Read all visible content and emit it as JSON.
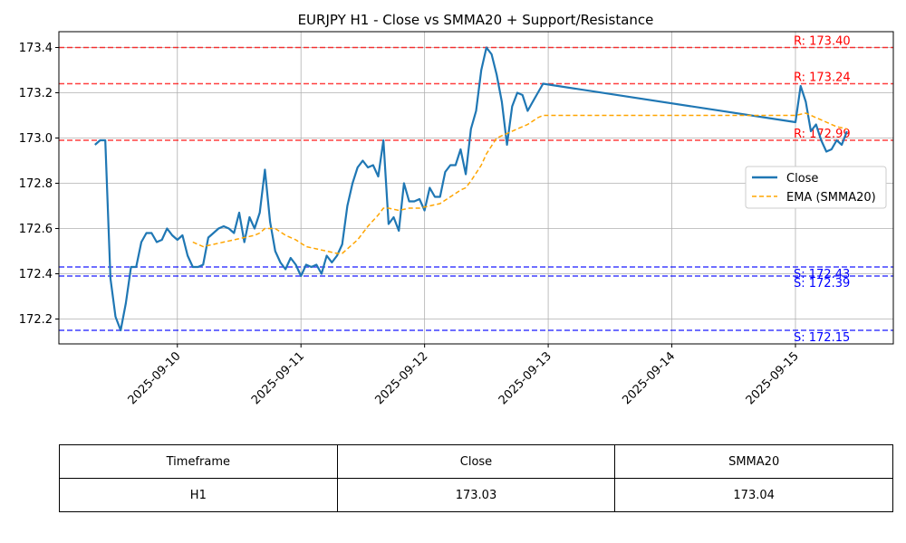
{
  "chart_data": {
    "type": "line",
    "title": "EURJPY H1 - Close vs SMMA20 + Support/Resistance",
    "xlabel": "",
    "ylabel": "",
    "x_range": [
      "2025-09-09T01:00",
      "2025-09-15T19:00"
    ],
    "ylim": [
      172.09,
      173.47
    ],
    "y_ticks": [
      172.2,
      172.4,
      172.6,
      172.8,
      173.0,
      173.2,
      173.4
    ],
    "y_tick_labels": [
      "172.2",
      "172.4",
      "172.6",
      "172.8",
      "173.0",
      "173.2",
      "173.4"
    ],
    "x_ticks": [
      "2025-09-10",
      "2025-09-11",
      "2025-09-12",
      "2025-09-13",
      "2025-09-14",
      "2025-09-15"
    ],
    "grid": true,
    "legend_position": "right",
    "series": [
      {
        "name": "Close",
        "color": "#1f77b4",
        "style": "solid",
        "points": [
          [
            "2025-09-09T08:00",
            172.97
          ],
          [
            "2025-09-09T09:00",
            172.99
          ],
          [
            "2025-09-09T10:00",
            172.99
          ],
          [
            "2025-09-09T11:00",
            172.38
          ],
          [
            "2025-09-09T12:00",
            172.21
          ],
          [
            "2025-09-09T13:00",
            172.15
          ],
          [
            "2025-09-09T14:00",
            172.27
          ],
          [
            "2025-09-09T15:00",
            172.43
          ],
          [
            "2025-09-09T16:00",
            172.43
          ],
          [
            "2025-09-09T17:00",
            172.54
          ],
          [
            "2025-09-09T18:00",
            172.58
          ],
          [
            "2025-09-09T19:00",
            172.58
          ],
          [
            "2025-09-09T20:00",
            172.54
          ],
          [
            "2025-09-09T21:00",
            172.55
          ],
          [
            "2025-09-09T22:00",
            172.6
          ],
          [
            "2025-09-09T23:00",
            172.57
          ],
          [
            "2025-09-10T00:00",
            172.55
          ],
          [
            "2025-09-10T01:00",
            172.57
          ],
          [
            "2025-09-10T02:00",
            172.48
          ],
          [
            "2025-09-10T03:00",
            172.43
          ],
          [
            "2025-09-10T04:00",
            172.43
          ],
          [
            "2025-09-10T05:00",
            172.44
          ],
          [
            "2025-09-10T06:00",
            172.56
          ],
          [
            "2025-09-10T07:00",
            172.58
          ],
          [
            "2025-09-10T08:00",
            172.6
          ],
          [
            "2025-09-10T09:00",
            172.61
          ],
          [
            "2025-09-10T10:00",
            172.6
          ],
          [
            "2025-09-10T11:00",
            172.58
          ],
          [
            "2025-09-10T12:00",
            172.67
          ],
          [
            "2025-09-10T13:00",
            172.54
          ],
          [
            "2025-09-10T14:00",
            172.65
          ],
          [
            "2025-09-10T15:00",
            172.6
          ],
          [
            "2025-09-10T16:00",
            172.67
          ],
          [
            "2025-09-10T17:00",
            172.86
          ],
          [
            "2025-09-10T18:00",
            172.63
          ],
          [
            "2025-09-10T19:00",
            172.5
          ],
          [
            "2025-09-10T20:00",
            172.45
          ],
          [
            "2025-09-10T21:00",
            172.42
          ],
          [
            "2025-09-10T22:00",
            172.47
          ],
          [
            "2025-09-10T23:00",
            172.44
          ],
          [
            "2025-09-11T00:00",
            172.39
          ],
          [
            "2025-09-11T01:00",
            172.44
          ],
          [
            "2025-09-11T02:00",
            172.43
          ],
          [
            "2025-09-11T03:00",
            172.44
          ],
          [
            "2025-09-11T04:00",
            172.4
          ],
          [
            "2025-09-11T05:00",
            172.48
          ],
          [
            "2025-09-11T06:00",
            172.45
          ],
          [
            "2025-09-11T07:00",
            172.48
          ],
          [
            "2025-09-11T08:00",
            172.53
          ],
          [
            "2025-09-11T09:00",
            172.7
          ],
          [
            "2025-09-11T10:00",
            172.8
          ],
          [
            "2025-09-11T11:00",
            172.87
          ],
          [
            "2025-09-11T12:00",
            172.9
          ],
          [
            "2025-09-11T13:00",
            172.87
          ],
          [
            "2025-09-11T14:00",
            172.88
          ],
          [
            "2025-09-11T15:00",
            172.83
          ],
          [
            "2025-09-11T16:00",
            172.99
          ],
          [
            "2025-09-11T17:00",
            172.62
          ],
          [
            "2025-09-11T18:00",
            172.65
          ],
          [
            "2025-09-11T19:00",
            172.59
          ],
          [
            "2025-09-11T20:00",
            172.8
          ],
          [
            "2025-09-11T21:00",
            172.72
          ],
          [
            "2025-09-11T22:00",
            172.72
          ],
          [
            "2025-09-11T23:00",
            172.73
          ],
          [
            "2025-09-12T00:00",
            172.68
          ],
          [
            "2025-09-12T01:00",
            172.78
          ],
          [
            "2025-09-12T02:00",
            172.74
          ],
          [
            "2025-09-12T03:00",
            172.74
          ],
          [
            "2025-09-12T04:00",
            172.85
          ],
          [
            "2025-09-12T05:00",
            172.88
          ],
          [
            "2025-09-12T06:00",
            172.88
          ],
          [
            "2025-09-12T07:00",
            172.95
          ],
          [
            "2025-09-12T08:00",
            172.84
          ],
          [
            "2025-09-12T09:00",
            173.04
          ],
          [
            "2025-09-12T10:00",
            173.12
          ],
          [
            "2025-09-12T11:00",
            173.3
          ],
          [
            "2025-09-12T12:00",
            173.4
          ],
          [
            "2025-09-12T13:00",
            173.37
          ],
          [
            "2025-09-12T14:00",
            173.28
          ],
          [
            "2025-09-12T15:00",
            173.16
          ],
          [
            "2025-09-12T16:00",
            172.97
          ],
          [
            "2025-09-12T17:00",
            173.14
          ],
          [
            "2025-09-12T18:00",
            173.2
          ],
          [
            "2025-09-12T19:00",
            173.19
          ],
          [
            "2025-09-12T20:00",
            173.12
          ],
          [
            "2025-09-12T21:00",
            173.16
          ],
          [
            "2025-09-12T22:00",
            173.2
          ],
          [
            "2025-09-12T23:00",
            173.24
          ],
          [
            "2025-09-15T00:00",
            173.07
          ],
          [
            "2025-09-15T01:00",
            173.23
          ],
          [
            "2025-09-15T02:00",
            173.16
          ],
          [
            "2025-09-15T03:00",
            173.03
          ],
          [
            "2025-09-15T04:00",
            173.06
          ],
          [
            "2025-09-15T05:00",
            172.99
          ],
          [
            "2025-09-15T06:00",
            172.94
          ],
          [
            "2025-09-15T07:00",
            172.95
          ],
          [
            "2025-09-15T08:00",
            172.99
          ],
          [
            "2025-09-15T09:00",
            172.97
          ],
          [
            "2025-09-15T10:00",
            173.03
          ]
        ]
      },
      {
        "name": "EMA (SMMA20)",
        "color": "#ffa500",
        "style": "dashed",
        "points": [
          [
            "2025-09-10T03:00",
            172.54
          ],
          [
            "2025-09-10T05:00",
            172.52
          ],
          [
            "2025-09-10T07:00",
            172.53
          ],
          [
            "2025-09-10T09:00",
            172.54
          ],
          [
            "2025-09-10T11:00",
            172.55
          ],
          [
            "2025-09-10T13:00",
            172.56
          ],
          [
            "2025-09-10T15:00",
            172.57
          ],
          [
            "2025-09-10T16:00",
            172.58
          ],
          [
            "2025-09-10T17:00",
            172.6
          ],
          [
            "2025-09-10T19:00",
            172.6
          ],
          [
            "2025-09-10T21:00",
            172.57
          ],
          [
            "2025-09-10T23:00",
            172.55
          ],
          [
            "2025-09-11T01:00",
            172.52
          ],
          [
            "2025-09-11T03:00",
            172.51
          ],
          [
            "2025-09-11T05:00",
            172.5
          ],
          [
            "2025-09-11T07:00",
            172.49
          ],
          [
            "2025-09-11T08:00",
            172.49
          ],
          [
            "2025-09-11T09:00",
            172.51
          ],
          [
            "2025-09-11T11:00",
            172.55
          ],
          [
            "2025-09-11T13:00",
            172.61
          ],
          [
            "2025-09-11T15:00",
            172.66
          ],
          [
            "2025-09-11T16:00",
            172.69
          ],
          [
            "2025-09-11T17:00",
            172.69
          ],
          [
            "2025-09-11T19:00",
            172.68
          ],
          [
            "2025-09-11T21:00",
            172.69
          ],
          [
            "2025-09-11T23:00",
            172.69
          ],
          [
            "2025-09-12T01:00",
            172.7
          ],
          [
            "2025-09-12T03:00",
            172.71
          ],
          [
            "2025-09-12T05:00",
            172.74
          ],
          [
            "2025-09-12T07:00",
            172.77
          ],
          [
            "2025-09-12T08:00",
            172.78
          ],
          [
            "2025-09-12T09:00",
            172.81
          ],
          [
            "2025-09-12T11:00",
            172.88
          ],
          [
            "2025-09-12T12:00",
            172.93
          ],
          [
            "2025-09-12T14:00",
            173.0
          ],
          [
            "2025-09-12T16:00",
            173.02
          ],
          [
            "2025-09-12T18:00",
            173.04
          ],
          [
            "2025-09-12T20:00",
            173.06
          ],
          [
            "2025-09-12T22:00",
            173.09
          ],
          [
            "2025-09-12T23:00",
            173.1
          ],
          [
            "2025-09-15T00:00",
            173.1
          ],
          [
            "2025-09-15T02:00",
            173.11
          ],
          [
            "2025-09-15T04:00",
            173.09
          ],
          [
            "2025-09-15T06:00",
            173.07
          ],
          [
            "2025-09-15T08:00",
            173.05
          ],
          [
            "2025-09-15T10:00",
            173.04
          ]
        ]
      }
    ],
    "levels": [
      {
        "kind": "resistance",
        "value": 173.4,
        "label": "R: 173.40",
        "color": "#ff0000"
      },
      {
        "kind": "resistance",
        "value": 173.24,
        "label": "R: 173.24",
        "color": "#ff0000"
      },
      {
        "kind": "resistance",
        "value": 172.99,
        "label": "R: 172.99",
        "color": "#ff0000"
      },
      {
        "kind": "support",
        "value": 172.43,
        "label": "S: 172.43",
        "color": "#0000ff"
      },
      {
        "kind": "support",
        "value": 172.39,
        "label": "S: 172.39",
        "color": "#0000ff"
      },
      {
        "kind": "support",
        "value": 172.15,
        "label": "S: 172.15",
        "color": "#0000ff"
      }
    ]
  },
  "table": {
    "headers": [
      "Timeframe",
      "Close",
      "SMMA20"
    ],
    "rows": [
      [
        "H1",
        "173.03",
        "173.04"
      ]
    ]
  }
}
